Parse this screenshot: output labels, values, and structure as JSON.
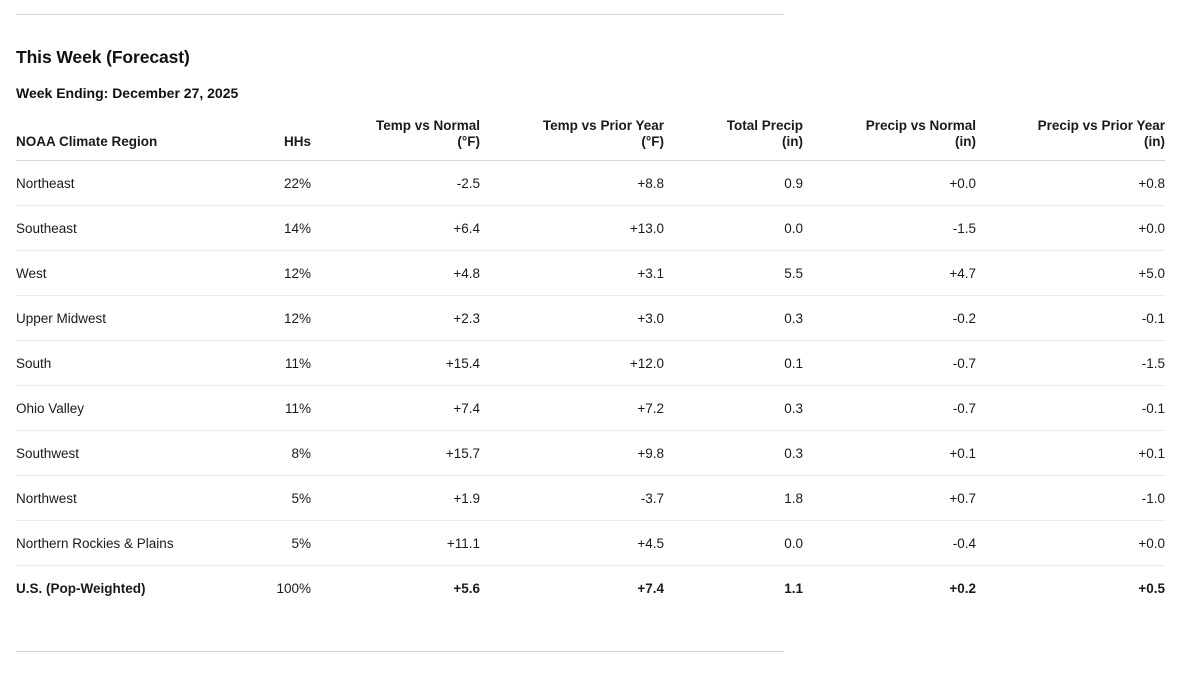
{
  "section": {
    "title": "This Week (Forecast)",
    "subtitle": "Week Ending: December 27, 2025"
  },
  "table": {
    "columns": [
      {
        "label": "NOAA Climate Region",
        "unit": ""
      },
      {
        "label": "HHs",
        "unit": ""
      },
      {
        "label": "Temp vs Normal",
        "unit": "(°F)"
      },
      {
        "label": "Temp vs Prior Year",
        "unit": "(°F)"
      },
      {
        "label": "Total Precip",
        "unit": "(in)"
      },
      {
        "label": "Precip vs Normal",
        "unit": "(in)"
      },
      {
        "label": "Precip vs Prior Year",
        "unit": "(in)"
      }
    ],
    "rows": [
      {
        "region": "Northeast",
        "hhs": "22%",
        "temp_vs_normal": "-2.5",
        "temp_vs_prior_year": "+8.8",
        "total_precip": "0.9",
        "precip_vs_normal": "+0.0",
        "precip_vs_prior_year": "+0.8"
      },
      {
        "region": "Southeast",
        "hhs": "14%",
        "temp_vs_normal": "+6.4",
        "temp_vs_prior_year": "+13.0",
        "total_precip": "0.0",
        "precip_vs_normal": "-1.5",
        "precip_vs_prior_year": "+0.0"
      },
      {
        "region": "West",
        "hhs": "12%",
        "temp_vs_normal": "+4.8",
        "temp_vs_prior_year": "+3.1",
        "total_precip": "5.5",
        "precip_vs_normal": "+4.7",
        "precip_vs_prior_year": "+5.0"
      },
      {
        "region": "Upper Midwest",
        "hhs": "12%",
        "temp_vs_normal": "+2.3",
        "temp_vs_prior_year": "+3.0",
        "total_precip": "0.3",
        "precip_vs_normal": "-0.2",
        "precip_vs_prior_year": "-0.1"
      },
      {
        "region": "South",
        "hhs": "11%",
        "temp_vs_normal": "+15.4",
        "temp_vs_prior_year": "+12.0",
        "total_precip": "0.1",
        "precip_vs_normal": "-0.7",
        "precip_vs_prior_year": "-1.5"
      },
      {
        "region": "Ohio Valley",
        "hhs": "11%",
        "temp_vs_normal": "+7.4",
        "temp_vs_prior_year": "+7.2",
        "total_precip": "0.3",
        "precip_vs_normal": "-0.7",
        "precip_vs_prior_year": "-0.1"
      },
      {
        "region": "Southwest",
        "hhs": "8%",
        "temp_vs_normal": "+15.7",
        "temp_vs_prior_year": "+9.8",
        "total_precip": "0.3",
        "precip_vs_normal": "+0.1",
        "precip_vs_prior_year": "+0.1"
      },
      {
        "region": "Northwest",
        "hhs": "5%",
        "temp_vs_normal": "+1.9",
        "temp_vs_prior_year": "-3.7",
        "total_precip": "1.8",
        "precip_vs_normal": "+0.7",
        "precip_vs_prior_year": "-1.0"
      },
      {
        "region": "Northern Rockies & Plains",
        "hhs": "5%",
        "temp_vs_normal": "+11.1",
        "temp_vs_prior_year": "+4.5",
        "total_precip": "0.0",
        "precip_vs_normal": "-0.4",
        "precip_vs_prior_year": "+0.0"
      }
    ],
    "total_row": {
      "region": "U.S. (Pop-Weighted)",
      "hhs": "100%",
      "temp_vs_normal": "+5.6",
      "temp_vs_prior_year": "+7.4",
      "total_precip": "1.1",
      "precip_vs_normal": "+0.2",
      "precip_vs_prior_year": "+0.5"
    }
  },
  "colors": {
    "text": "#1a1a1a",
    "divider": "#d4d4d4",
    "header_border": "#d6d6d6",
    "row_separator": "#ebebeb",
    "background": "#ffffff"
  }
}
